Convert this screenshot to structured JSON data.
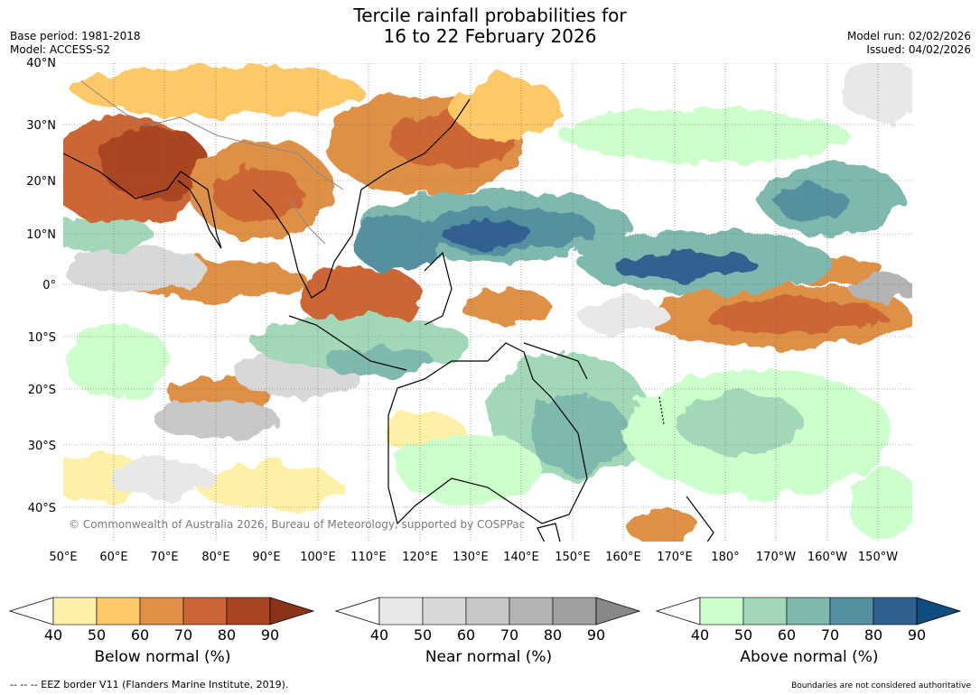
{
  "header": {
    "title_line1": "Tercile rainfall probabilities for",
    "title_line2": "16 to 22 February 2026",
    "base_period": "Base period: 1981-2018",
    "model": "Model: ACCESS-S2",
    "model_run": "Model run: 02/02/2026",
    "issued": "Issued: 04/02/2026"
  },
  "map": {
    "lat_labels": [
      "40°N",
      "30°N",
      "20°N",
      "10°N",
      "0°",
      "10°S",
      "20°S",
      "30°S",
      "40°S"
    ],
    "lon_labels": [
      "50°E",
      "60°E",
      "70°E",
      "80°E",
      "90°E",
      "100°E",
      "110°E",
      "120°E",
      "130°E",
      "140°E",
      "150°E",
      "160°E",
      "170°E",
      "180°",
      "170°W",
      "160°W",
      "150°W"
    ],
    "copyright": "© Commonwealth of Australia 2026, Bureau of Meteorology, supported by COSPPac"
  },
  "legend": {
    "below": {
      "title": "Below normal (%)",
      "ticks": [
        "40",
        "50",
        "60",
        "70",
        "80",
        "90"
      ],
      "colors": [
        "#fff0a8",
        "#fdc868",
        "#df9046",
        "#cc6636",
        "#aa4422",
        "#8b3318"
      ]
    },
    "near": {
      "title": "Near normal (%)",
      "ticks": [
        "40",
        "50",
        "60",
        "70",
        "80",
        "90"
      ],
      "colors": [
        "#e8e8e8",
        "#d8d8d8",
        "#c8c8c8",
        "#b4b4b4",
        "#a0a0a0",
        "#888888"
      ]
    },
    "above": {
      "title": "Above normal (%)",
      "ticks": [
        "40",
        "50",
        "60",
        "70",
        "80",
        "90"
      ],
      "colors": [
        "#ccffcc",
        "#a2d8b8",
        "#7fb8ae",
        "#5590a0",
        "#306090",
        "#0f4c80"
      ]
    }
  },
  "footer": {
    "eez": "--  --  -- EEZ border V11 (Flanders Marine Institute, 2019).",
    "disclaimer": "Boundaries are not considered authoritative"
  }
}
